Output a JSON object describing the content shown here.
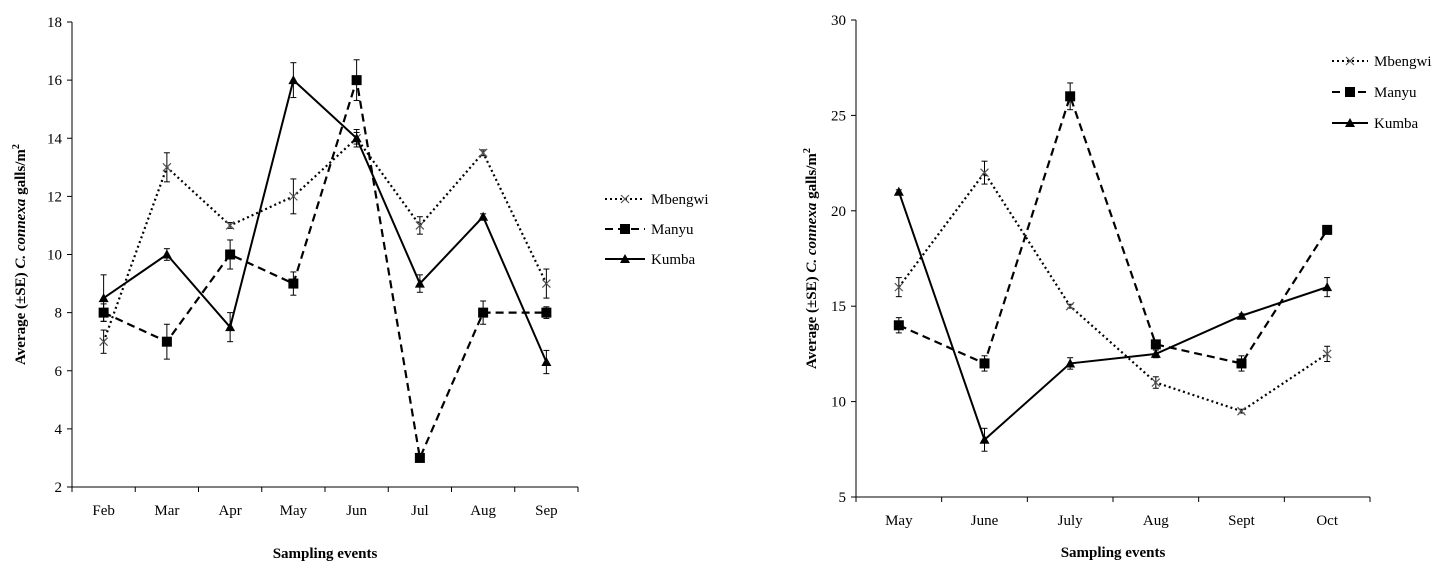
{
  "chart_data": [
    {
      "type": "line",
      "title": "",
      "xlabel": "Sampling events",
      "ylabel_parts": [
        "Average (±SE) ",
        "C. connexa",
        " galls/m",
        "2"
      ],
      "categories": [
        "Feb",
        "Mar",
        "Apr",
        "May",
        "Jun",
        "Jul",
        "Aug",
        "Sep"
      ],
      "ylim": [
        2,
        18
      ],
      "yticks": [
        2,
        4,
        6,
        8,
        10,
        12,
        14,
        16,
        18
      ],
      "grid": false,
      "legend_position": "right",
      "series": [
        {
          "name": "Mbengwi",
          "style": "dotted",
          "marker": "x",
          "values": [
            7.0,
            13.0,
            11.0,
            12.0,
            14.0,
            11.0,
            13.5,
            9.0
          ],
          "errors": [
            0.4,
            0.5,
            0.1,
            0.6,
            0.3,
            0.3,
            0.1,
            0.5
          ]
        },
        {
          "name": "Manyu",
          "style": "dashed",
          "marker": "square",
          "values": [
            8.0,
            7.0,
            10.0,
            9.0,
            16.0,
            3.0,
            8.0,
            8.0
          ],
          "errors": [
            0.3,
            0.6,
            0.5,
            0.4,
            0.7,
            0.1,
            0.4,
            0.2
          ]
        },
        {
          "name": "Kumba",
          "style": "solid",
          "marker": "triangle",
          "values": [
            8.5,
            10.0,
            7.5,
            16.0,
            14.0,
            9.0,
            11.3,
            6.3
          ],
          "errors": [
            0.8,
            0.2,
            0.5,
            0.6,
            0.2,
            0.3,
            0.1,
            0.4
          ]
        }
      ]
    },
    {
      "type": "line",
      "title": "",
      "xlabel": "Sampling events",
      "ylabel_parts": [
        "Average (±SE) ",
        "C. connexa",
        " galls/m",
        "2"
      ],
      "categories": [
        "May",
        "June",
        "July",
        "Aug",
        "Sept",
        "Oct"
      ],
      "ylim": [
        5,
        30
      ],
      "yticks": [
        5,
        10,
        15,
        20,
        25,
        30
      ],
      "grid": false,
      "legend_position": "top-right",
      "series": [
        {
          "name": "Mbengwi",
          "style": "dotted",
          "marker": "x",
          "values": [
            16.0,
            22.0,
            15.0,
            11.0,
            9.5,
            12.5
          ],
          "errors": [
            0.5,
            0.6,
            0.1,
            0.3,
            0.1,
            0.4
          ]
        },
        {
          "name": "Manyu",
          "style": "dashed",
          "marker": "square",
          "values": [
            14.0,
            12.0,
            26.0,
            13.0,
            12.0,
            19.0
          ],
          "errors": [
            0.4,
            0.4,
            0.7,
            0.2,
            0.4,
            0.1
          ]
        },
        {
          "name": "Kumba",
          "style": "solid",
          "marker": "triangle",
          "values": [
            21.0,
            8.0,
            12.0,
            12.5,
            14.5,
            16.0
          ],
          "errors": [
            0.1,
            0.6,
            0.3,
            0.2,
            0.1,
            0.5
          ]
        }
      ]
    }
  ]
}
